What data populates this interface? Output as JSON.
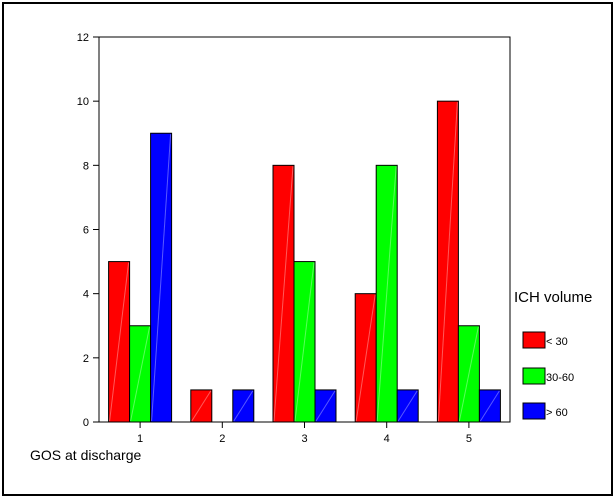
{
  "chart_data": {
    "type": "bar",
    "title": "",
    "xlabel": "GOS at discharge",
    "ylabel": "",
    "categories": [
      "1",
      "2",
      "3",
      "4",
      "5"
    ],
    "ylim": [
      0,
      12
    ],
    "yticks": [
      "0",
      "2",
      "4",
      "6",
      "8",
      "10",
      "12"
    ],
    "series": [
      {
        "name": "< 30",
        "color": "#ff0000",
        "values": [
          5,
          1,
          8,
          4,
          10
        ]
      },
      {
        "name": "30-60",
        "color": "#00ff00",
        "values": [
          3,
          0,
          5,
          8,
          3
        ]
      },
      {
        "name": "> 60",
        "color": "#0000ff",
        "values": [
          9,
          1,
          1,
          1,
          1
        ]
      }
    ],
    "legend": {
      "title": "ICH volume",
      "placement": "right"
    },
    "grid": false
  }
}
